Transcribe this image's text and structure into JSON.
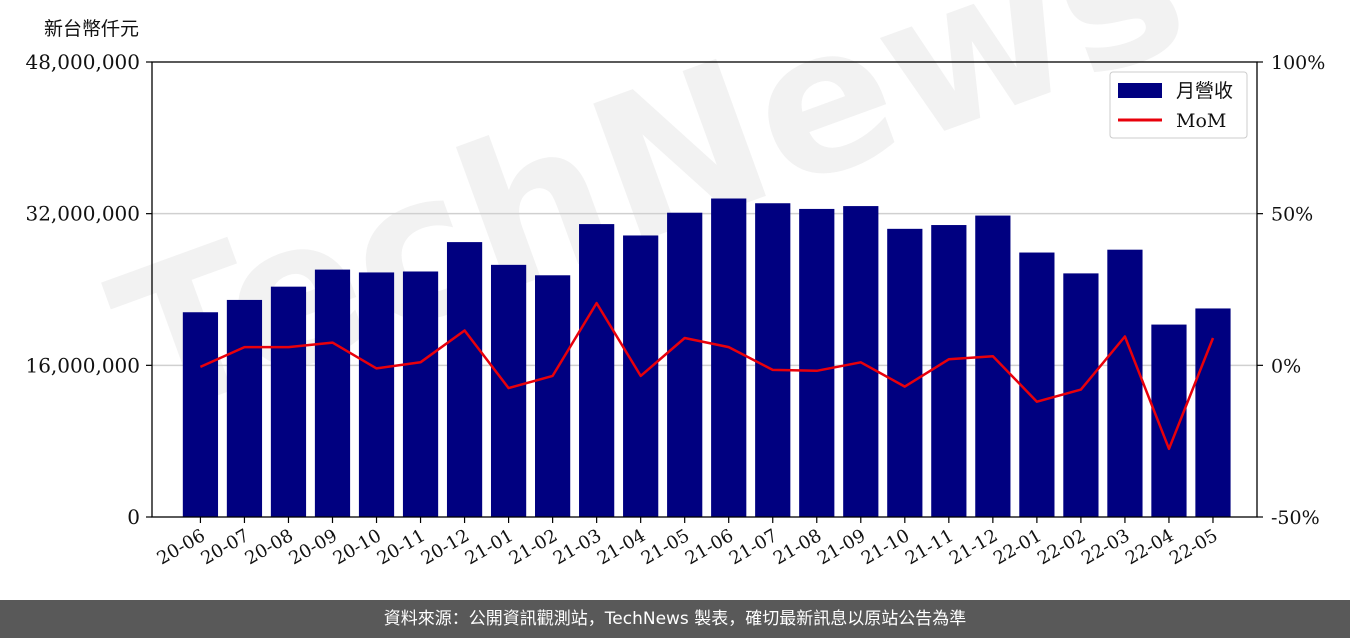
{
  "chart_data": {
    "type": "bar",
    "unit_label": "新台幣仟元",
    "categories": [
      "20-06",
      "20-07",
      "20-08",
      "20-09",
      "20-10",
      "20-11",
      "20-12",
      "21-01",
      "21-02",
      "21-03",
      "21-04",
      "21-05",
      "21-06",
      "21-07",
      "21-08",
      "21-09",
      "21-10",
      "21-11",
      "21-12",
      "22-01",
      "22-02",
      "22-03",
      "22-04",
      "22-05"
    ],
    "series": [
      {
        "name": "月營收",
        "axis": "left",
        "type": "bar",
        "color": "#000080",
        "values": [
          21600000,
          22900000,
          24300000,
          26100000,
          25800000,
          25900000,
          29000000,
          26600000,
          25500000,
          30900000,
          29700000,
          32100000,
          33600000,
          33100000,
          32500000,
          32800000,
          30400000,
          30800000,
          31800000,
          27900000,
          25700000,
          28200000,
          20300000,
          22000000
        ]
      },
      {
        "name": "MoM",
        "axis": "right",
        "type": "line",
        "color": "#e8000b",
        "values": [
          -0.5,
          6.0,
          6.0,
          7.5,
          -1.0,
          1.0,
          11.5,
          -7.5,
          -3.5,
          20.5,
          -3.5,
          9.0,
          6.0,
          -1.5,
          -1.8,
          1.0,
          -7.0,
          2.0,
          3.0,
          -12.0,
          -8.0,
          9.5,
          -27.5,
          9.0
        ]
      }
    ],
    "left_axis": {
      "ylim": [
        0,
        48000000
      ],
      "ticks": [
        "0",
        "16,000,000",
        "32,000,000",
        "48,000,000"
      ],
      "tick_values": [
        0,
        16000000,
        32000000,
        48000000
      ]
    },
    "right_axis": {
      "ylim": [
        -50,
        100
      ],
      "ticks": [
        "-50%",
        "0%",
        "50%",
        "100%"
      ],
      "tick_values": [
        -50,
        0,
        50,
        100
      ]
    },
    "grid": "horizontal",
    "legend": {
      "placement": "top-right",
      "entries": [
        "月營收",
        "MoM"
      ]
    },
    "watermark": "TechNews"
  },
  "footer": {
    "text": "資料來源：公開資訊觀測站，TechNews 製表，確切最新訊息以原站公告為準"
  }
}
